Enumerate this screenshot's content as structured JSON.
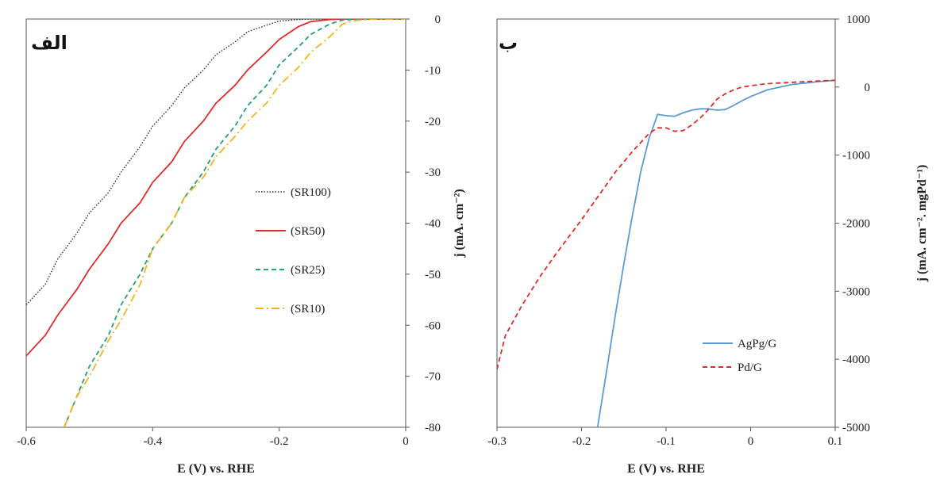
{
  "chart_data": [
    {
      "type": "line",
      "panel_label": "الف",
      "xlabel": "E (V) vs. RHE",
      "ylabel": "j (mA. cm⁻²)",
      "xlim": [
        -0.6,
        0
      ],
      "ylim": [
        -80,
        0
      ],
      "x_ticks": [
        "-0.6",
        "-0.4",
        "-0.2",
        "0"
      ],
      "y_ticks": [
        "0",
        "-10",
        "-20",
        "-30",
        "-40",
        "-50",
        "-60",
        "-70",
        "-80"
      ],
      "legend_position": "center-right",
      "series": [
        {
          "name": "(SR100)",
          "color": "#333333",
          "style": "dotted",
          "x": [
            -0.6,
            -0.57,
            -0.55,
            -0.52,
            -0.5,
            -0.47,
            -0.45,
            -0.42,
            -0.4,
            -0.37,
            -0.35,
            -0.32,
            -0.3,
            -0.27,
            -0.25,
            -0.22,
            -0.2,
            -0.17,
            -0.15,
            -0.1,
            0
          ],
          "y": [
            -56,
            -52,
            -47,
            -42,
            -38,
            -34,
            -30,
            -25,
            -21,
            -17,
            -13.5,
            -10,
            -7,
            -4.5,
            -2.5,
            -1.2,
            -0.4,
            -0.1,
            0,
            0,
            0
          ]
        },
        {
          "name": "(SR50)",
          "color": "#e02b2b",
          "style": "solid",
          "x": [
            -0.6,
            -0.57,
            -0.55,
            -0.52,
            -0.5,
            -0.47,
            -0.45,
            -0.42,
            -0.4,
            -0.37,
            -0.35,
            -0.32,
            -0.3,
            -0.27,
            -0.25,
            -0.22,
            -0.2,
            -0.17,
            -0.15,
            -0.12,
            -0.1,
            -0.05,
            0
          ],
          "y": [
            -66,
            -62,
            -58,
            -53,
            -49,
            -44,
            -40,
            -36,
            -32,
            -28,
            -24,
            -20,
            -16.5,
            -13,
            -10,
            -6.5,
            -4,
            -1.5,
            -0.5,
            -0.1,
            0,
            0,
            0
          ]
        },
        {
          "name": "(SR25)",
          "color": "#23a07c",
          "style": "dashed",
          "x": [
            -0.54,
            -0.52,
            -0.5,
            -0.47,
            -0.45,
            -0.42,
            -0.4,
            -0.37,
            -0.35,
            -0.32,
            -0.3,
            -0.27,
            -0.25,
            -0.22,
            -0.2,
            -0.17,
            -0.15,
            -0.12,
            -0.1,
            -0.07,
            0
          ],
          "y": [
            -80,
            -74,
            -68,
            -62,
            -56,
            -50,
            -45,
            -40,
            -35,
            -30,
            -25.5,
            -21,
            -17,
            -13,
            -9,
            -5.5,
            -3,
            -1,
            -0.2,
            0,
            0
          ]
        },
        {
          "name": "(SR10)",
          "color": "#f5b41b",
          "style": "dashdot",
          "x": [
            -0.54,
            -0.52,
            -0.5,
            -0.47,
            -0.45,
            -0.42,
            -0.4,
            -0.37,
            -0.35,
            -0.32,
            -0.3,
            -0.27,
            -0.25,
            -0.22,
            -0.2,
            -0.17,
            -0.15,
            -0.12,
            -0.1,
            -0.08,
            -0.05,
            0
          ],
          "y": [
            -80,
            -74,
            -70,
            -63,
            -59,
            -52,
            -45,
            -40,
            -35,
            -31,
            -27,
            -23,
            -20,
            -16.5,
            -13,
            -9.5,
            -6.5,
            -3.5,
            -1,
            -0.3,
            0,
            0
          ]
        }
      ]
    },
    {
      "type": "line",
      "panel_label": "ب",
      "xlabel": "E (V) vs. RHE",
      "ylabel": "j (mA. cm⁻². mgPd⁻¹)",
      "xlim": [
        -0.3,
        0.1
      ],
      "ylim": [
        -5000,
        1000
      ],
      "x_ticks": [
        "-0.3",
        "-0.2",
        "-0.1",
        "0",
        "0.1"
      ],
      "y_ticks": [
        "1000",
        "0",
        "-1000",
        "-2000",
        "-3000",
        "-4000",
        "-5000"
      ],
      "legend_position": "bottom-right",
      "series": [
        {
          "name": "AgPg/G",
          "color": "#5b9bd5",
          "style": "solid",
          "x": [
            -0.181,
            -0.17,
            -0.16,
            -0.15,
            -0.14,
            -0.13,
            -0.12,
            -0.11,
            -0.1,
            -0.09,
            -0.08,
            -0.07,
            -0.06,
            -0.05,
            -0.04,
            -0.03,
            -0.02,
            -0.01,
            0,
            0.02,
            0.05,
            0.08,
            0.1
          ],
          "y": [
            -5000,
            -4150,
            -3350,
            -2600,
            -1900,
            -1250,
            -750,
            -400,
            -420,
            -430,
            -380,
            -340,
            -320,
            -320,
            -340,
            -330,
            -270,
            -200,
            -140,
            -40,
            40,
            80,
            100
          ]
        },
        {
          "name": "Pd/G",
          "color": "#e02b2b",
          "style": "dashed",
          "x": [
            -0.3,
            -0.29,
            -0.27,
            -0.25,
            -0.23,
            -0.2,
            -0.18,
            -0.16,
            -0.14,
            -0.12,
            -0.11,
            -0.1,
            -0.09,
            -0.08,
            -0.07,
            -0.06,
            -0.05,
            -0.04,
            -0.03,
            -0.02,
            -0.01,
            0,
            0.02,
            0.05,
            0.08,
            0.1
          ],
          "y": [
            -4150,
            -3650,
            -3200,
            -2800,
            -2450,
            -1950,
            -1600,
            -1250,
            -950,
            -680,
            -600,
            -600,
            -650,
            -640,
            -560,
            -460,
            -330,
            -180,
            -100,
            -40,
            0,
            20,
            50,
            70,
            90,
            100
          ]
        }
      ]
    }
  ]
}
